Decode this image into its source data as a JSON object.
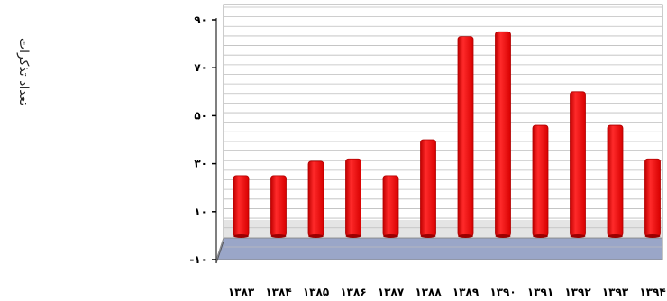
{
  "chart_data": {
    "type": "bar",
    "ylabel": "تعداد تذکرات",
    "categories": [
      "۱۳۸۳",
      "۱۳۸۴",
      "۱۳۸۵",
      "۱۳۸۶",
      "۱۳۸۷",
      "۱۳۸۸",
      "۱۳۸۹",
      "۱۳۹۰",
      "۱۳۹۱",
      "۱۳۹۲",
      "۱۳۹۳",
      "۱۳۹۴"
    ],
    "values": [
      25,
      25,
      31,
      32,
      25,
      40,
      83,
      85,
      46,
      60,
      46,
      32
    ],
    "yticks": [
      {
        "value": 90,
        "label": "۹۰"
      },
      {
        "value": 70,
        "label": "۷۰"
      },
      {
        "value": 50,
        "label": "۵۰"
      },
      {
        "value": 30,
        "label": "۳۰"
      },
      {
        "value": 10,
        "label": "۱۰"
      },
      {
        "value": -10,
        "label": "-۱۰"
      }
    ],
    "ylim": [
      -10,
      90
    ],
    "grid": true,
    "bar_color": "#ff1a1a",
    "floor_color": "#9aa6c8"
  }
}
